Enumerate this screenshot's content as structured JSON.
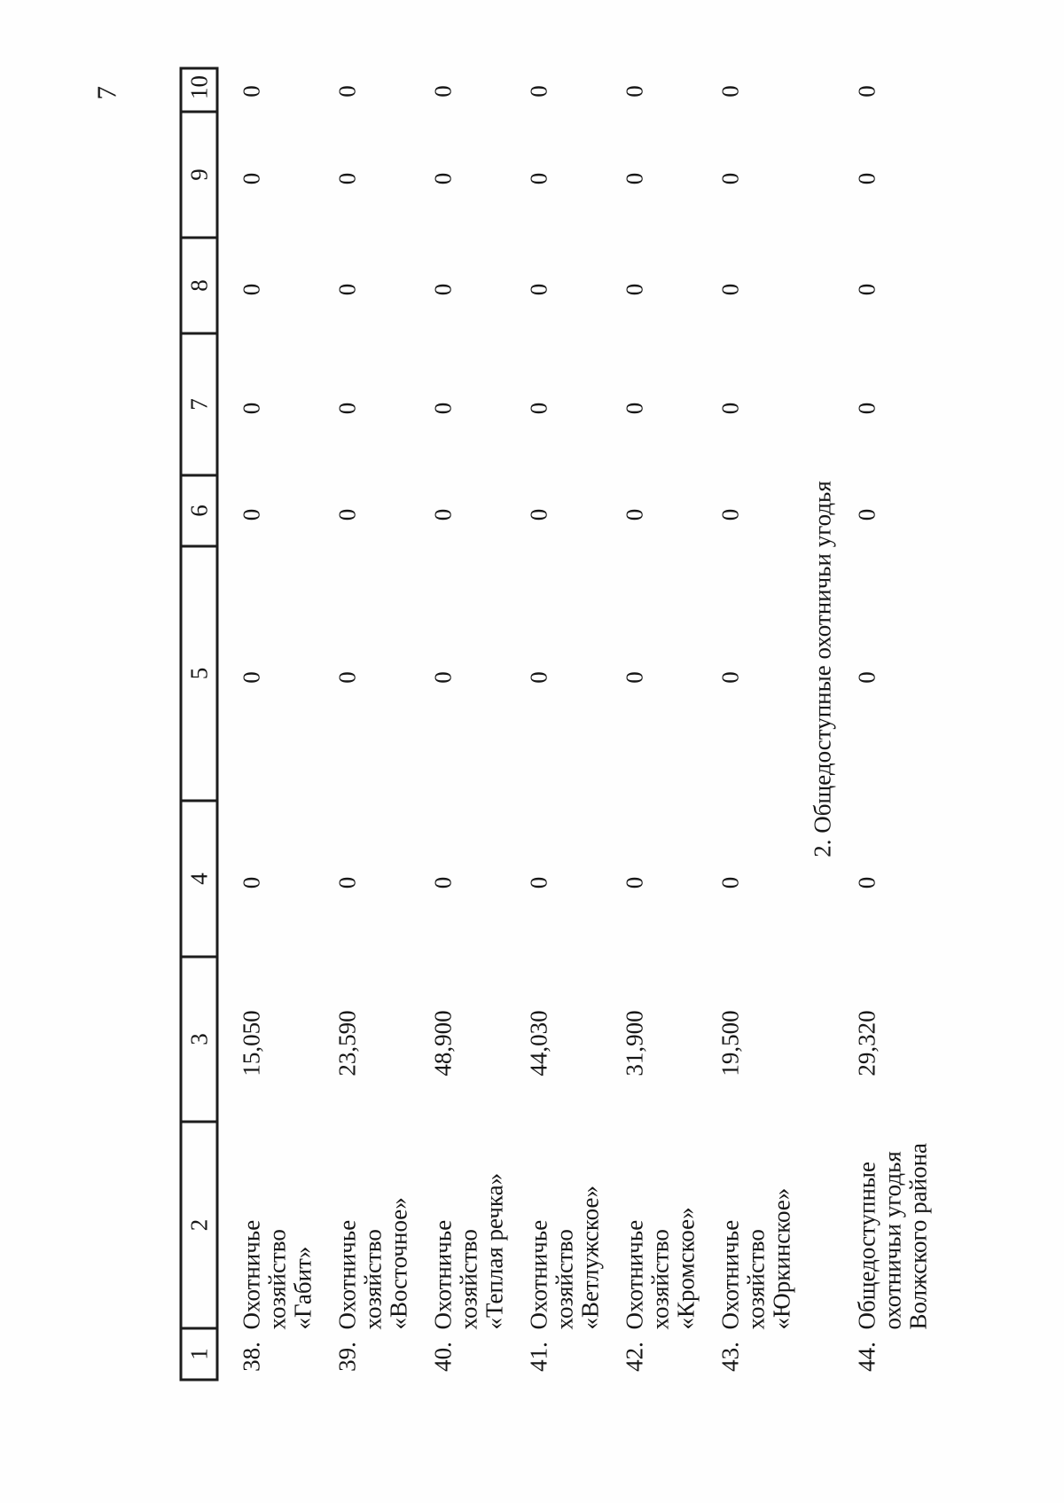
{
  "page": {
    "number": "7"
  },
  "table": {
    "column_headers": [
      "1",
      "2",
      "3",
      "4",
      "5",
      "6",
      "7",
      "8",
      "9",
      "10"
    ],
    "section_header": "2. Общедоступные охотничьи угодья",
    "rows": [
      {
        "num": "38.",
        "name_lines": [
          "Охотничье",
          "хозяйство",
          "«Габит»"
        ],
        "area": "15,050",
        "zeros": [
          "0",
          "0",
          "0",
          "0",
          "0",
          "0",
          "0"
        ]
      },
      {
        "num": "39.",
        "name_lines": [
          "Охотничье",
          "хозяйство",
          "«Восточное»"
        ],
        "area": "23,590",
        "zeros": [
          "0",
          "0",
          "0",
          "0",
          "0",
          "0",
          "0"
        ]
      },
      {
        "num": "40.",
        "name_lines": [
          "Охотничье",
          "хозяйство",
          "«Теплая речка»"
        ],
        "area": "48,900",
        "zeros": [
          "0",
          "0",
          "0",
          "0",
          "0",
          "0",
          "0"
        ]
      },
      {
        "num": "41.",
        "name_lines": [
          "Охотничье",
          "хозяйство",
          "«Ветлужское»"
        ],
        "area": "44,030",
        "zeros": [
          "0",
          "0",
          "0",
          "0",
          "0",
          "0",
          "0"
        ]
      },
      {
        "num": "42.",
        "name_lines": [
          "Охотничье",
          "хозяйство",
          "«Кромское»"
        ],
        "area": "31,900",
        "zeros": [
          "0",
          "0",
          "0",
          "0",
          "0",
          "0",
          "0"
        ]
      },
      {
        "num": "43.",
        "name_lines": [
          "Охотничье",
          "хозяйство",
          "«Юркинское»"
        ],
        "area": "19,500",
        "zeros": [
          "0",
          "0",
          "0",
          "0",
          "0",
          "0",
          "0"
        ]
      },
      {
        "num": "44.",
        "name_lines": [
          "Общедоступные",
          "охотничьи угодья",
          "Волжского района"
        ],
        "area": "29,320",
        "zeros": [
          "0",
          "0",
          "0",
          "0",
          "0",
          "0",
          "0"
        ]
      }
    ]
  }
}
